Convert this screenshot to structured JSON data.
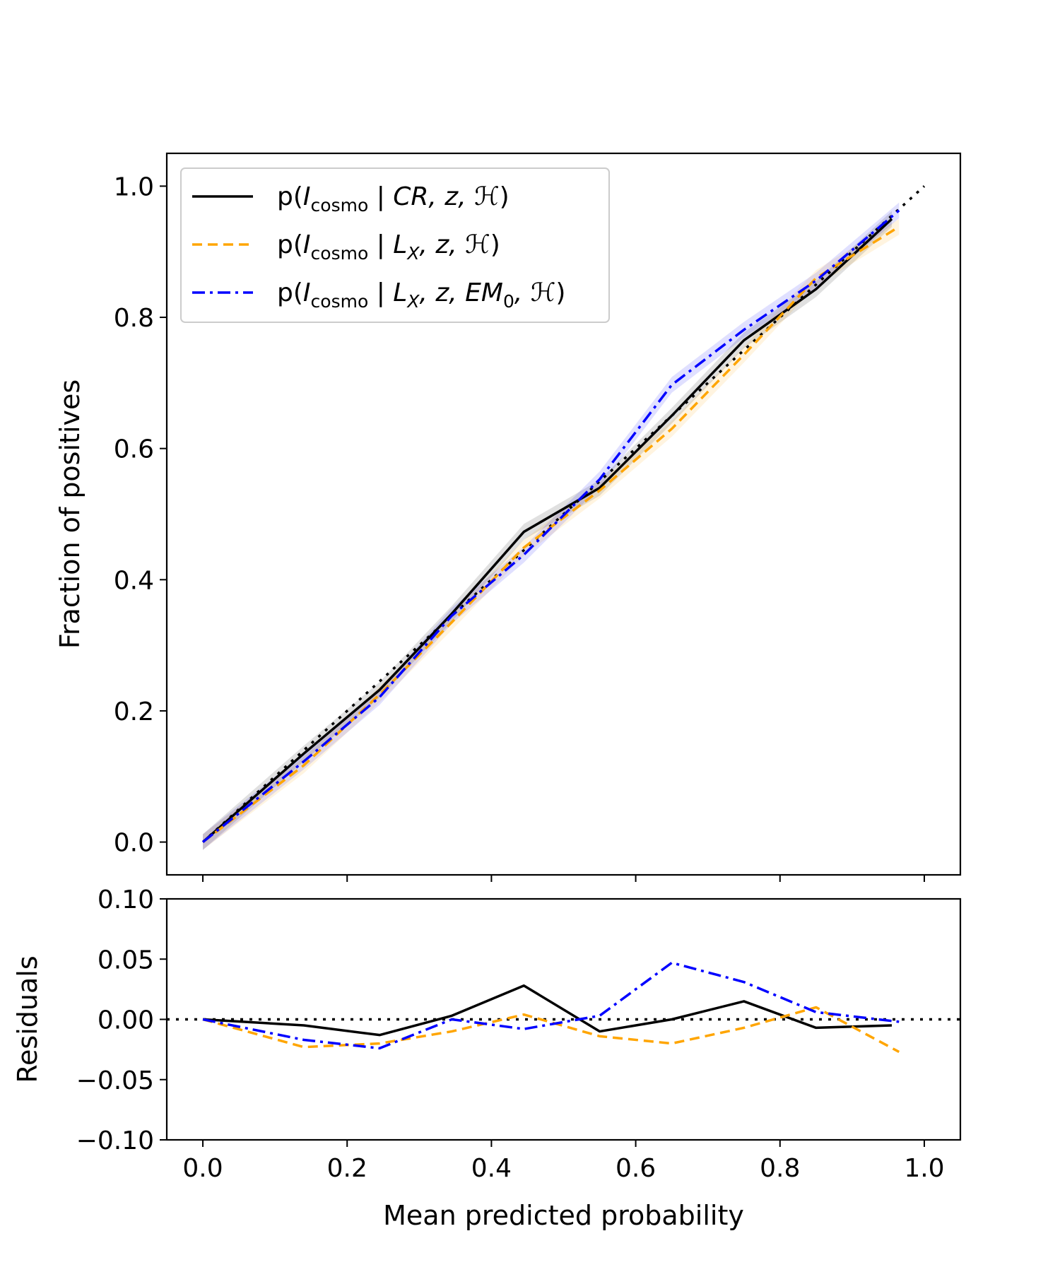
{
  "chart_data": [
    {
      "type": "line",
      "panel": "calibration",
      "xlabel": "",
      "ylabel": "Fraction of positives",
      "xlim": [
        -0.05,
        1.05
      ],
      "ylim": [
        -0.05,
        1.05
      ],
      "yticks": [
        0.0,
        0.2,
        0.4,
        0.6,
        0.8,
        1.0
      ],
      "ytick_labels": [
        "0.0",
        "0.2",
        "0.4",
        "0.6",
        "0.8",
        "1.0"
      ],
      "reference": {
        "name": "perfect calibration",
        "style": "dotted",
        "color": "#000000",
        "x": [
          0.0,
          1.0
        ],
        "y": [
          0.0,
          1.0
        ]
      },
      "legend_position": "upper-left",
      "series": [
        {
          "name": "black-solid",
          "label_prefix": "p(",
          "label_sub": "cosmo",
          "label_main": " | CR, z, ",
          "color": "#000000",
          "style": "solid",
          "x": [
            0.0,
            0.14,
            0.245,
            0.345,
            0.445,
            0.55,
            0.65,
            0.75,
            0.85,
            0.955
          ],
          "y": [
            0.0,
            0.135,
            0.232,
            0.348,
            0.473,
            0.54,
            0.65,
            0.765,
            0.843,
            0.95
          ]
        },
        {
          "name": "orange-dashed",
          "label_prefix": "p(",
          "label_sub": "cosmo",
          "label_main": " | L",
          "label_main_sub": "X",
          "label_tail": ", z, ",
          "color": "#ffa500",
          "style": "dashed",
          "x": [
            0.0,
            0.14,
            0.245,
            0.345,
            0.445,
            0.55,
            0.65,
            0.75,
            0.85,
            0.965
          ],
          "y": [
            0.0,
            0.117,
            0.225,
            0.335,
            0.449,
            0.536,
            0.63,
            0.743,
            0.86,
            0.938
          ]
        },
        {
          "name": "blue-dashdot",
          "label_prefix": "p(",
          "label_sub": "cosmo",
          "label_main": " | L",
          "label_main_sub": "X",
          "label_tail": ", z, EM",
          "label_tail_sub": "0",
          "label_end": ", ",
          "color": "#0000ff",
          "style": "dashdot",
          "x": [
            0.0,
            0.14,
            0.245,
            0.345,
            0.445,
            0.55,
            0.65,
            0.75,
            0.85,
            0.965
          ],
          "y": [
            0.0,
            0.123,
            0.221,
            0.345,
            0.438,
            0.553,
            0.697,
            0.781,
            0.856,
            0.963
          ]
        }
      ],
      "legend_symbol": "ℋ",
      "legend_italic_I": "I"
    },
    {
      "type": "line",
      "panel": "residuals",
      "xlabel": "Mean predicted probability",
      "ylabel": "Residuals",
      "xlim": [
        -0.05,
        1.05
      ],
      "ylim": [
        -0.1,
        0.1
      ],
      "xticks": [
        0.0,
        0.2,
        0.4,
        0.6,
        0.8,
        1.0
      ],
      "xtick_labels": [
        "0.0",
        "0.2",
        "0.4",
        "0.6",
        "0.8",
        "1.0"
      ],
      "yticks": [
        -0.1,
        -0.05,
        0.0,
        0.05,
        0.1
      ],
      "ytick_labels": [
        "−0.10",
        "−0.05",
        "0.00",
        "0.05",
        "0.10"
      ],
      "reference": {
        "name": "zero line",
        "style": "dotted",
        "color": "#000000",
        "y": 0.0
      },
      "series": [
        {
          "name": "black-solid",
          "color": "#000000",
          "style": "solid",
          "x": [
            0.0,
            0.14,
            0.245,
            0.345,
            0.445,
            0.55,
            0.65,
            0.75,
            0.85,
            0.955
          ],
          "y": [
            0.0,
            -0.005,
            -0.013,
            0.003,
            0.028,
            -0.01,
            0.0,
            0.015,
            -0.007,
            -0.005
          ]
        },
        {
          "name": "orange-dashed",
          "color": "#ffa500",
          "style": "dashed",
          "x": [
            0.0,
            0.14,
            0.245,
            0.345,
            0.445,
            0.55,
            0.65,
            0.75,
            0.85,
            0.965
          ],
          "y": [
            0.0,
            -0.023,
            -0.02,
            -0.01,
            0.004,
            -0.014,
            -0.02,
            -0.007,
            0.01,
            -0.027
          ]
        },
        {
          "name": "blue-dashdot",
          "color": "#0000ff",
          "style": "dashdot",
          "x": [
            0.0,
            0.14,
            0.245,
            0.345,
            0.445,
            0.55,
            0.65,
            0.75,
            0.85,
            0.965
          ],
          "y": [
            0.0,
            -0.017,
            -0.024,
            0.0,
            -0.008,
            0.003,
            0.047,
            0.031,
            0.006,
            -0.002
          ]
        }
      ]
    }
  ]
}
